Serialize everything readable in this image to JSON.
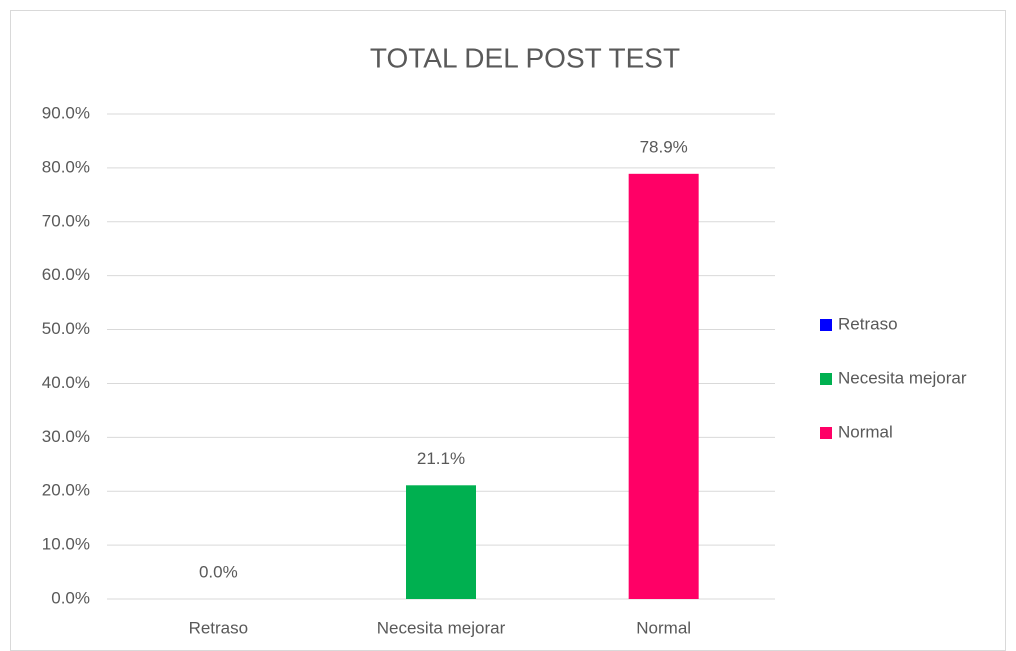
{
  "chart_data": {
    "type": "bar",
    "title": "TOTAL DEL POST TEST",
    "categories": [
      "Retraso",
      "Necesita mejorar",
      "Normal"
    ],
    "values": [
      0,
      21.1,
      78.9
    ],
    "value_labels": [
      "0.0%",
      "21.1%",
      "78.9%"
    ],
    "colors": [
      "#0000ff",
      "#00b050",
      "#ff0066"
    ],
    "ylim": [
      0,
      90
    ],
    "yticks": [
      {
        "value": 0,
        "label": "0.0%"
      },
      {
        "value": 10,
        "label": "10.0%"
      },
      {
        "value": 20,
        "label": "20.0%"
      },
      {
        "value": 30,
        "label": "30.0%"
      },
      {
        "value": 40,
        "label": "40.0%"
      },
      {
        "value": 50,
        "label": "50.0%"
      },
      {
        "value": 60,
        "label": "60.0%"
      },
      {
        "value": 70,
        "label": "70.0%"
      },
      {
        "value": 80,
        "label": "80.0%"
      },
      {
        "value": 90,
        "label": "90.0%"
      }
    ],
    "grid": true,
    "legend": "right"
  }
}
